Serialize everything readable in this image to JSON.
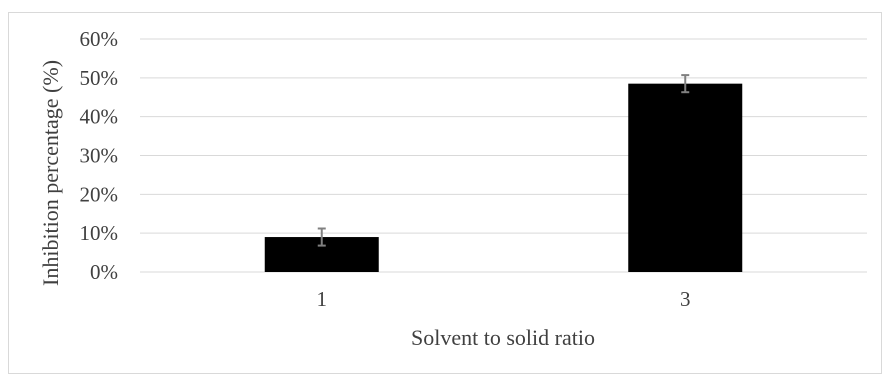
{
  "chart_data": {
    "type": "bar",
    "title": "",
    "xlabel": "Solvent to solid ratio",
    "ylabel": "Inhibition percentage (%)",
    "categories": [
      "1",
      "3"
    ],
    "values": [
      0.09,
      0.485
    ],
    "error": [
      0.022,
      0.022
    ],
    "ylim": [
      0,
      0.6
    ],
    "yticks": [
      0,
      0.1,
      0.2,
      0.3,
      0.4,
      0.5,
      0.6
    ],
    "ytick_labels": [
      "0%",
      "10%",
      "20%",
      "30%",
      "40%",
      "50%",
      "60%"
    ],
    "grid": true,
    "legend": "none",
    "colors": {
      "bar": "#000000",
      "grid": "#d9d9d9",
      "text": "#404040",
      "error_bar": "#808080"
    }
  }
}
